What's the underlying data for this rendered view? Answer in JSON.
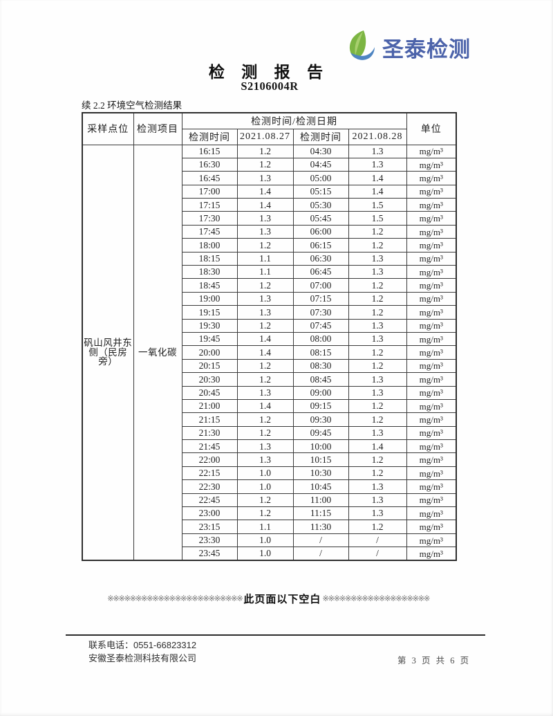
{
  "header": {
    "logo_text": "圣泰检测",
    "title": "检 测 报 告",
    "report_number": "S2106004R",
    "colors": {
      "logo_text_blue": "#4c63aa",
      "leaf_green": "#7cb543",
      "leaf_light_green": "#a8cf6e",
      "swoosh_blue": "#4e85c2"
    }
  },
  "section": {
    "label": "续 2.2 环境空气检测结果"
  },
  "table": {
    "col_headers": {
      "sampling_point": "采样点位",
      "test_item": "检测项目",
      "time_date_group": "检测时间/检测日期",
      "time1": "检测时间",
      "date1": "2021.08.27",
      "time2": "检测时间",
      "date2": "2021.08.28",
      "unit": "单位"
    },
    "sampling_point_value": "矾山风井东侧（民房旁）",
    "test_item_value": "一氧化碳",
    "unit_value": "mg/m³",
    "rows": [
      {
        "t1": "16:15",
        "v1": "1.2",
        "t2": "04:30",
        "v2": "1.3"
      },
      {
        "t1": "16:30",
        "v1": "1.2",
        "t2": "04:45",
        "v2": "1.3"
      },
      {
        "t1": "16:45",
        "v1": "1.3",
        "t2": "05:00",
        "v2": "1.4"
      },
      {
        "t1": "17:00",
        "v1": "1.4",
        "t2": "05:15",
        "v2": "1.4"
      },
      {
        "t1": "17:15",
        "v1": "1.4",
        "t2": "05:30",
        "v2": "1.5"
      },
      {
        "t1": "17:30",
        "v1": "1.3",
        "t2": "05:45",
        "v2": "1.5"
      },
      {
        "t1": "17:45",
        "v1": "1.3",
        "t2": "06:00",
        "v2": "1.2"
      },
      {
        "t1": "18:00",
        "v1": "1.2",
        "t2": "06:15",
        "v2": "1.2"
      },
      {
        "t1": "18:15",
        "v1": "1.1",
        "t2": "06:30",
        "v2": "1.3"
      },
      {
        "t1": "18:30",
        "v1": "1.1",
        "t2": "06:45",
        "v2": "1.3"
      },
      {
        "t1": "18:45",
        "v1": "1.2",
        "t2": "07:00",
        "v2": "1.2"
      },
      {
        "t1": "19:00",
        "v1": "1.3",
        "t2": "07:15",
        "v2": "1.2"
      },
      {
        "t1": "19:15",
        "v1": "1.3",
        "t2": "07:30",
        "v2": "1.2"
      },
      {
        "t1": "19:30",
        "v1": "1.2",
        "t2": "07:45",
        "v2": "1.3"
      },
      {
        "t1": "19:45",
        "v1": "1.4",
        "t2": "08:00",
        "v2": "1.3"
      },
      {
        "t1": "20:00",
        "v1": "1.4",
        "t2": "08:15",
        "v2": "1.2"
      },
      {
        "t1": "20:15",
        "v1": "1.2",
        "t2": "08:30",
        "v2": "1.2"
      },
      {
        "t1": "20:30",
        "v1": "1.2",
        "t2": "08:45",
        "v2": "1.3"
      },
      {
        "t1": "20:45",
        "v1": "1.3",
        "t2": "09:00",
        "v2": "1.3"
      },
      {
        "t1": "21:00",
        "v1": "1.4",
        "t2": "09:15",
        "v2": "1.2"
      },
      {
        "t1": "21:15",
        "v1": "1.2",
        "t2": "09:30",
        "v2": "1.2"
      },
      {
        "t1": "21:30",
        "v1": "1.2",
        "t2": "09:45",
        "v2": "1.3"
      },
      {
        "t1": "21:45",
        "v1": "1.3",
        "t2": "10:00",
        "v2": "1.4"
      },
      {
        "t1": "22:00",
        "v1": "1.3",
        "t2": "10:15",
        "v2": "1.2"
      },
      {
        "t1": "22:15",
        "v1": "1.0",
        "t2": "10:30",
        "v2": "1.2"
      },
      {
        "t1": "22:30",
        "v1": "1.0",
        "t2": "10:45",
        "v2": "1.3"
      },
      {
        "t1": "22:45",
        "v1": "1.2",
        "t2": "11:00",
        "v2": "1.3"
      },
      {
        "t1": "23:00",
        "v1": "1.2",
        "t2": "11:15",
        "v2": "1.3"
      },
      {
        "t1": "23:15",
        "v1": "1.1",
        "t2": "11:30",
        "v2": "1.2"
      },
      {
        "t1": "23:30",
        "v1": "1.0",
        "t2": "/",
        "v2": "/"
      },
      {
        "t1": "23:45",
        "v1": "1.0",
        "t2": "/",
        "v2": "/"
      }
    ]
  },
  "blank_note": {
    "left_marks": "※※※※※※※※※※※※※※※※※※※※※※※※",
    "text": "此页面以下空白",
    "right_marks": "※※※※※※※※※※※※※※※※※※※"
  },
  "footer": {
    "phone": "联系电话：0551-66823312",
    "company": "安徽圣泰检测科技有限公司",
    "page": "第 3 页 共 6 页"
  }
}
